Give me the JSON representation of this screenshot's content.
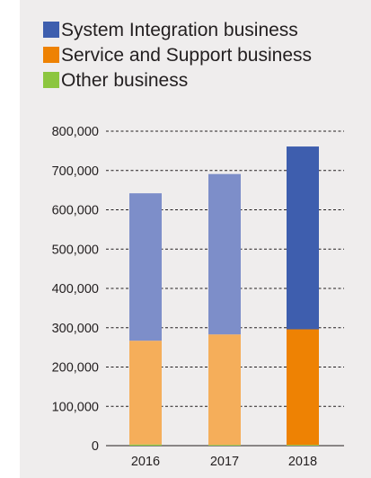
{
  "colors": {
    "panel_bg": "#efeded",
    "system_integration": "#3e5eae",
    "system_integration_light": "#7d8ec9",
    "service_support": "#ee8203",
    "service_support_light": "#f5ae5a",
    "other": "#8cc63f",
    "gridline": "#231f20"
  },
  "chart_data": {
    "type": "bar",
    "stacked": true,
    "categories": [
      "2016",
      "2017",
      "2018"
    ],
    "series": [
      {
        "name": "Other business",
        "values": [
          3000,
          2000,
          2000
        ]
      },
      {
        "name": "Service and Support business",
        "values": [
          264000,
          281000,
          294000
        ]
      },
      {
        "name": "System Integration business",
        "values": [
          375000,
          408000,
          465000
        ]
      }
    ],
    "legend": [
      "System Integration business",
      "Service and Support business",
      "Other business"
    ],
    "yticks": [
      "0",
      "100,000",
      "200,000",
      "300,000",
      "400,000",
      "500,000",
      "600,000",
      "700,000",
      "800,000"
    ],
    "ylim": [
      0,
      800000
    ],
    "highlight_category": "2018",
    "grid": "dashed horizontal",
    "legend_position": "top-left"
  }
}
